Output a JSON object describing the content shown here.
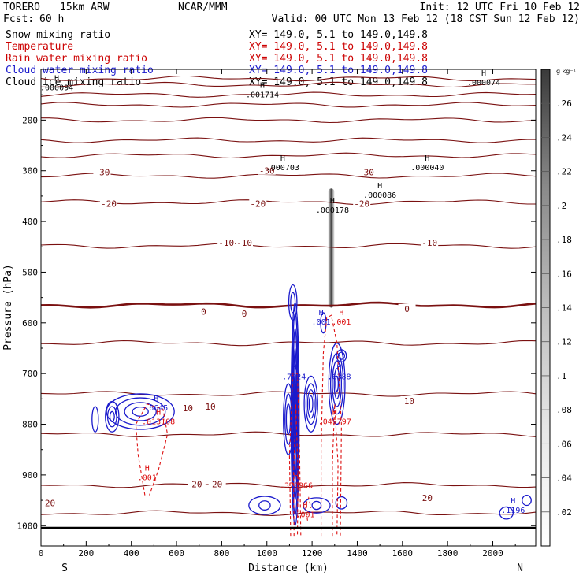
{
  "header": {
    "model": "TORERO",
    "resolution": "15km ARW",
    "org": "NCAR/MMM",
    "init": "Init: 12 UTC Fri 10 Feb 12",
    "fcst_label": "Fcst:",
    "fcst_value": "60 h",
    "valid": "Valid: 00 UTC Mon 13 Feb 12 (18 CST Sun 12 Feb 12)"
  },
  "legend": [
    {
      "label": "Snow mixing ratio",
      "xy": "XY= 149.0,  5.1 to 149.0,149.8",
      "color": "#000000",
      "xy_color": "#000000"
    },
    {
      "label": "Temperature",
      "xy": "XY= 149.0,  5.1 to 149.0,149.8",
      "color": "#cc0000",
      "xy_color": "#cc0000"
    },
    {
      "label": "Rain water mixing ratio",
      "xy": "XY= 149.0,  5.1 to 149.0,149.8",
      "color": "#cc0000",
      "xy_color": "#cc0000"
    },
    {
      "label": "Cloud water mixing ratio",
      "xy": "XY= 149.0,  5.1 to 149.0,149.8",
      "color": "#1a1acc",
      "xy_color": "#1a1acc"
    },
    {
      "label": "Cloud ice mixing ratio",
      "xy": "XY= 149.0,  5.1 to 149.0,149.8",
      "color": "#000000",
      "xy_color": "#000000"
    }
  ],
  "colors": {
    "temperature": "#7a1010",
    "freezing": "#7a1010",
    "rain": "#dd1111",
    "cloud_water": "#1a1acc",
    "axis": "#000000"
  },
  "chart_data": {
    "type": "contour",
    "xlabel": "Distance (km)",
    "ylabel": "Pressure (hPa)",
    "x_ticks": [
      0,
      200,
      400,
      600,
      800,
      1000,
      1200,
      1400,
      1600,
      1800,
      2000
    ],
    "y_ticks": [
      200,
      300,
      400,
      500,
      600,
      700,
      800,
      900,
      1000
    ],
    "xlim": [
      0,
      2190
    ],
    "ylim": [
      1040,
      100
    ],
    "left_end": "S",
    "right_end": "N",
    "colorbar": {
      "unit": "g kg⁻¹",
      "ticks": [
        ".02",
        ".04",
        ".06",
        ".08",
        ".1",
        ".12",
        ".14",
        ".16",
        ".18",
        ".2",
        ".22",
        ".24",
        ".26"
      ]
    },
    "temperature_contours": {
      "levels": [
        -50,
        -45,
        -40,
        -35,
        -30,
        -25,
        -20,
        -15,
        -10,
        -5,
        0,
        5,
        10,
        15,
        20,
        25
      ],
      "base_pressure": [
        118,
        130,
        150,
        170,
        200,
        240,
        270,
        310,
        362,
        448,
        565,
        640,
        740,
        820,
        920,
        975
      ],
      "labeled": [
        {
          "text": "-30",
          "x": 270,
          "p": 303
        },
        {
          "text": "-30",
          "x": 1000,
          "p": 300
        },
        {
          "text": "-30",
          "x": 1440,
          "p": 303
        },
        {
          "text": "-20",
          "x": 300,
          "p": 365
        },
        {
          "text": "-20",
          "x": 960,
          "p": 365
        },
        {
          "text": "-20",
          "x": 1420,
          "p": 365
        },
        {
          "text": "-10",
          "x": 820,
          "p": 442
        },
        {
          "text": "-10",
          "x": 900,
          "p": 442
        },
        {
          "text": "-10",
          "x": 1720,
          "p": 442
        },
        {
          "text": "0",
          "x": 720,
          "p": 578
        },
        {
          "text": "0",
          "x": 900,
          "p": 582
        },
        {
          "text": "0",
          "x": 1620,
          "p": 572
        },
        {
          "text": "10",
          "x": 650,
          "p": 768
        },
        {
          "text": "10",
          "x": 750,
          "p": 765
        },
        {
          "text": "10",
          "x": 1630,
          "p": 754
        },
        {
          "text": "20",
          "x": 690,
          "p": 918
        },
        {
          "text": "20",
          "x": 780,
          "p": 918
        },
        {
          "text": "20",
          "x": 1710,
          "p": 945
        },
        {
          "text": "20",
          "x": 40,
          "p": 955
        }
      ]
    },
    "snow_maximum_marks": [
      {
        "value": ".000094",
        "x": 70,
        "p": 138
      },
      {
        "value": ".001714",
        "x": 980,
        "p": 152
      },
      {
        "value": ".000703",
        "x": 1070,
        "p": 296
      },
      {
        "value": ".000178",
        "x": 1290,
        "p": 380
      },
      {
        "value": ".000086",
        "x": 1500,
        "p": 350
      },
      {
        "value": ".000040",
        "x": 1710,
        "p": 296
      },
      {
        "value": ".000074",
        "x": 1960,
        "p": 128
      }
    ],
    "cloud_water_marks": [
      {
        "value": ".7224",
        "x": 1120,
        "p": 708
      },
      {
        "value": ".6388",
        "x": 1320,
        "p": 708
      },
      {
        "value": ".6645",
        "x": 510,
        "p": 770
      },
      {
        "value": ".001",
        "x": 1240,
        "p": 600
      },
      {
        "value": ".1196",
        "x": 2090,
        "p": 972
      }
    ],
    "rain_marks": [
      {
        "value": ".001",
        "x": 1330,
        "p": 600
      },
      {
        "value": ".013108",
        "x": 520,
        "p": 797
      },
      {
        "value": ".049797",
        "x": 1300,
        "p": 797
      },
      {
        "value": ".378966",
        "x": 1130,
        "p": 923
      },
      {
        "value": ".001",
        "x": 470,
        "p": 907
      },
      {
        "value": ".001",
        "x": 1170,
        "p": 980
      }
    ]
  }
}
